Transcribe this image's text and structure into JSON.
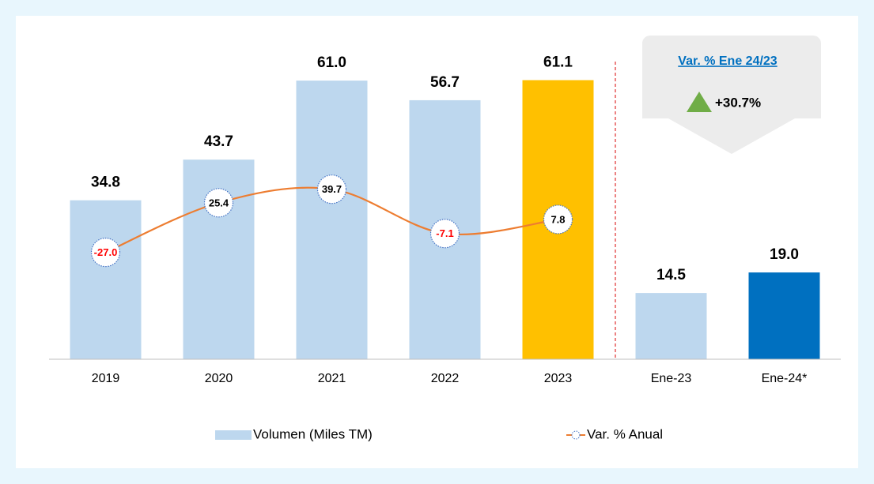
{
  "chart_data": {
    "type": "bar",
    "categories": [
      "2019",
      "2020",
      "2021",
      "2022",
      "2023",
      "Ene-23",
      "Ene-24*"
    ],
    "ylim": [
      0,
      70
    ],
    "y2lim": [
      -140,
      198
    ],
    "series": [
      {
        "name": "Volumen (Miles TM)",
        "color": "#bdd7ee",
        "colors": [
          "#bdd7ee",
          "#bdd7ee",
          "#bdd7ee",
          "#bdd7ee",
          "#ffc000",
          "#bdd7ee",
          "#0070c0"
        ],
        "values": [
          34.8,
          43.7,
          61.0,
          56.7,
          61.1,
          14.5,
          19.0
        ],
        "value_labels": [
          "34.8",
          "43.7",
          "61.0",
          "56.7",
          "61.1",
          "14.5",
          "19.0"
        ]
      },
      {
        "name": "Var. % Anual",
        "type": "line",
        "axis": "y2",
        "color": "#ed7d31",
        "values": [
          -27.0,
          25.4,
          39.7,
          -7.1,
          7.8,
          null,
          null
        ],
        "value_labels": [
          "-27.0",
          "25.4",
          "39.7",
          "-7.1",
          "7.8",
          null,
          null
        ]
      }
    ],
    "annotations": {
      "title": "Var. % Ene 24/23",
      "value": "+30.7%"
    }
  }
}
